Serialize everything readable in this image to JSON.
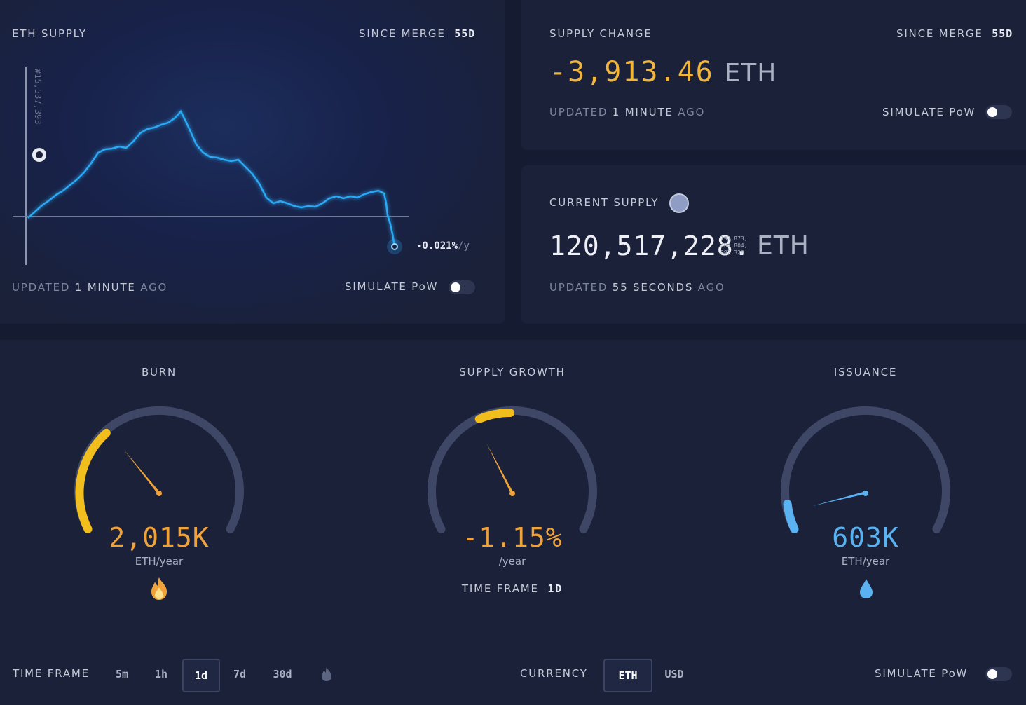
{
  "eth_supply": {
    "title": "ETH SUPPLY",
    "since_label": "SINCE MERGE",
    "since_value": "55d",
    "merge_marker": "#15,537,393",
    "rate": "-0.021%",
    "rate_unit": "/y",
    "updated_prefix": "UPDATED",
    "updated_value": "1 MINUTE",
    "updated_suffix": "AGO",
    "simulate_label": "SIMULATE PoW",
    "line_color": "#2aa9f5"
  },
  "supply_change": {
    "title": "SUPPLY CHANGE",
    "since_label": "SINCE MERGE",
    "since_value": "55d",
    "value": "-3,913.46",
    "unit": "ETH",
    "updated_prefix": "UPDATED",
    "updated_value": "1 MINUTE",
    "updated_suffix": "AGO",
    "simulate_label": "SIMULATE PoW",
    "value_color": "#f0b53a"
  },
  "current_supply": {
    "title": "CURRENT SUPPLY",
    "value": "120,517,228.",
    "decimals_line1": "191,873,",
    "decimals_line2": "404,804,",
    "decimals_line3": "092,320",
    "unit": "ETH",
    "updated_prefix": "UPDATED",
    "updated_value": "55 SECONDS",
    "updated_suffix": "AGO"
  },
  "gauges": {
    "burn": {
      "title": "BURN",
      "value": "2,015K",
      "unit": "ETH/year",
      "color": "#f0a33a"
    },
    "supply_growth": {
      "title": "SUPPLY GROWTH",
      "value": "-1.15%",
      "unit": "/year",
      "timeframe_label": "TIME FRAME",
      "timeframe_value": "1d",
      "color": "#f0a33a"
    },
    "issuance": {
      "title": "ISSUANCE",
      "value": "603K",
      "unit": "ETH/year",
      "color": "#5ab2f0"
    }
  },
  "footer": {
    "timeframe_label": "TIME FRAME",
    "timeframes": [
      "5m",
      "1h",
      "1d",
      "7d",
      "30d"
    ],
    "active_timeframe": "1d",
    "currency_label": "CURRENCY",
    "currencies": [
      "ETH",
      "USD"
    ],
    "active_currency": "ETH",
    "simulate_label": "SIMULATE PoW"
  }
}
